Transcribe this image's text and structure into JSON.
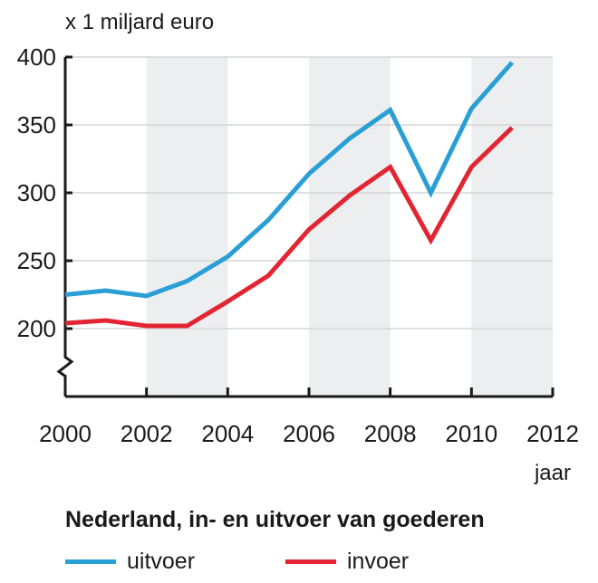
{
  "chart_data": {
    "type": "line",
    "title": "Nederland, in- en uitvoer van goederen",
    "ylabel": "x 1 miljard euro",
    "xlabel": "jaar",
    "xlim": [
      2000,
      2012
    ],
    "ylim": [
      150,
      400
    ],
    "axis_break": true,
    "grid": true,
    "shaded_bands": [
      [
        2002,
        2004
      ],
      [
        2006,
        2008
      ],
      [
        2010,
        2012
      ]
    ],
    "x_ticks": [
      "2000",
      "2002",
      "2004",
      "2006",
      "2008",
      "2010",
      "2012"
    ],
    "y_ticks": [
      "200",
      "250",
      "300",
      "350",
      "400"
    ],
    "x": [
      2000,
      2001,
      2002,
      2003,
      2004,
      2005,
      2006,
      2007,
      2008,
      2009,
      2010,
      2011
    ],
    "series": [
      {
        "name": "uitvoer",
        "color": "#2a9fd6",
        "values": [
          225,
          228,
          224,
          235,
          253,
          280,
          314,
          340,
          361,
          300,
          362,
          396
        ]
      },
      {
        "name": "invoer",
        "color": "#e32533",
        "values": [
          204,
          206,
          202,
          202,
          220,
          239,
          273,
          298,
          319,
          265,
          319,
          348
        ]
      }
    ],
    "legend_position": "bottom"
  }
}
